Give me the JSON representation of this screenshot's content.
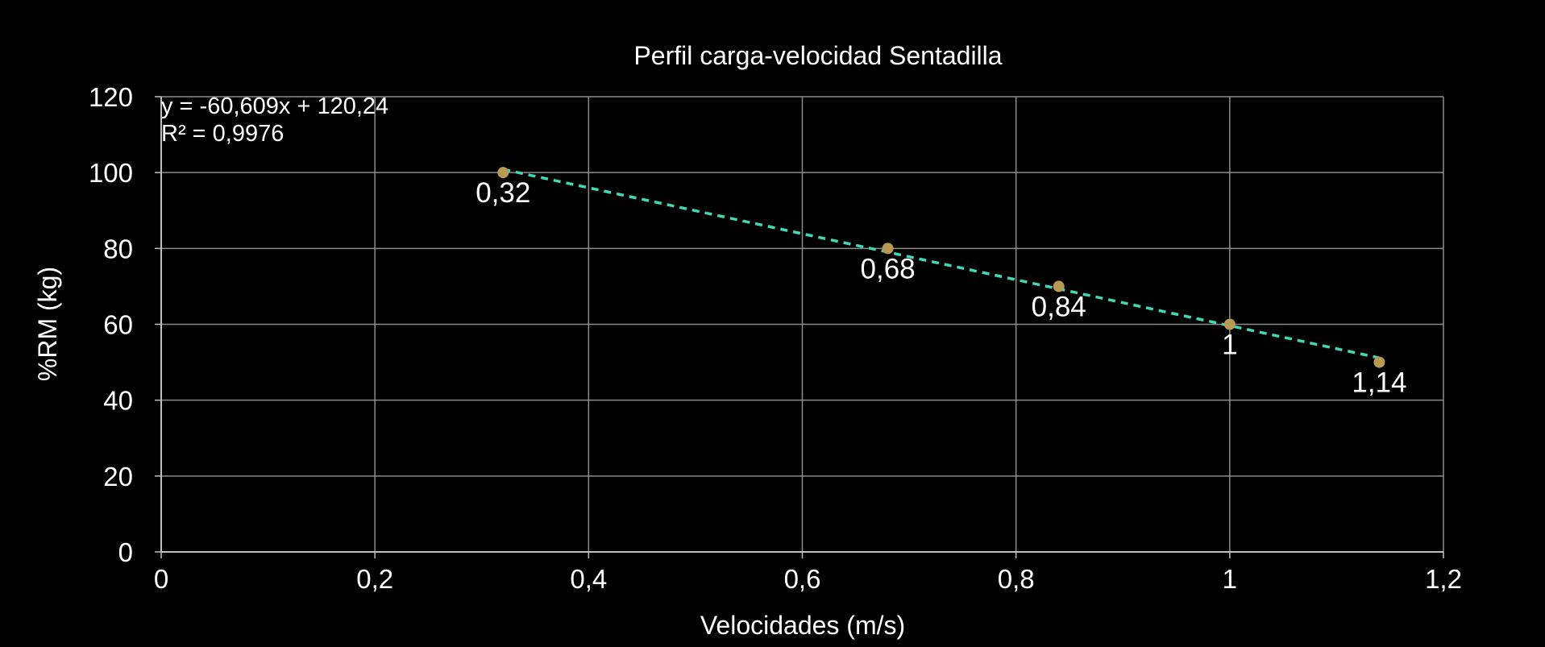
{
  "chart_data": {
    "type": "scatter",
    "title": "Perfil carga-velocidad Sentadilla",
    "xlabel": "Velocidades (m/s)",
    "ylabel": "%RM (kg)",
    "xlim": [
      0,
      1.2
    ],
    "ylim": [
      0,
      120
    ],
    "x_ticks": [
      0,
      0.2,
      0.4,
      0.6,
      0.8,
      1,
      1.2
    ],
    "x_tick_labels": [
      "0",
      "0,2",
      "0,4",
      "0,6",
      "0,8",
      "1",
      "1,2"
    ],
    "y_ticks": [
      0,
      20,
      40,
      60,
      80,
      100,
      120
    ],
    "y_tick_labels": [
      "0",
      "20",
      "40",
      "60",
      "80",
      "100",
      "120"
    ],
    "grid": true,
    "series": [
      {
        "name": "Sentadilla",
        "x": [
          0.32,
          0.68,
          0.84,
          1,
          1.14
        ],
        "y": [
          100,
          80,
          70,
          60,
          50
        ],
        "data_labels": [
          "0,32",
          "0,68",
          "0,84",
          "1",
          "1,14"
        ]
      }
    ],
    "trendline": {
      "type": "linear",
      "slope": -60.609,
      "intercept": 120.24,
      "x_range": [
        0.32,
        1.14
      ],
      "equation_label": "y = -60,609x + 120,24",
      "r2_label": "R² = 0,9976"
    },
    "colors": {
      "background": "#000000",
      "grid": "#8c8c8c",
      "axis": "#bfbfbf",
      "text": "#ffffff",
      "marker": "#b89a55",
      "trendline": "#3fd9b5"
    }
  }
}
